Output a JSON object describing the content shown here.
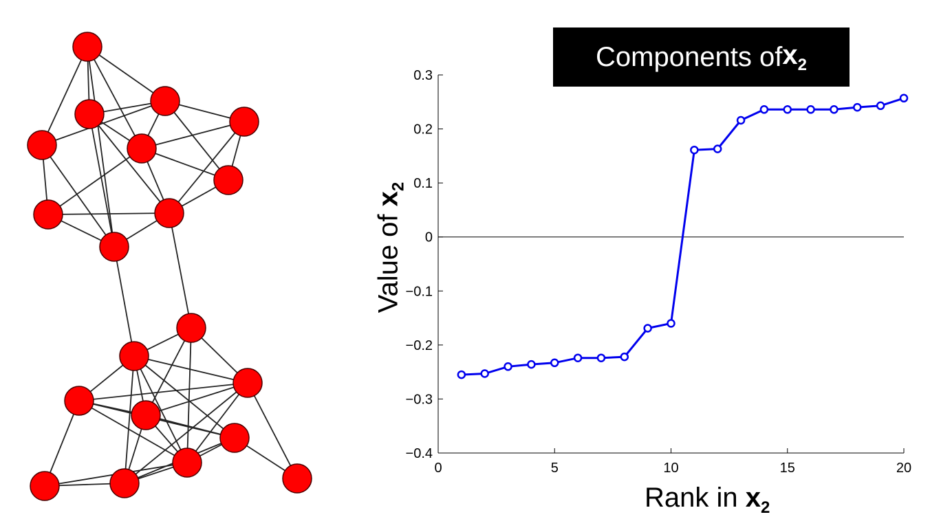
{
  "graph": {
    "node_color": "#ff0000",
    "node_stroke": "#4a0000",
    "edge_color": "#222222"
  },
  "chart_data": {
    "type": "line",
    "title_prefix": "Components of ",
    "title_var": "x",
    "title_sub": "2",
    "xlabel_prefix": "Rank in ",
    "xlabel_var": "x",
    "xlabel_sub": "2",
    "ylabel_prefix": "Value of ",
    "ylabel_var": "x",
    "ylabel_sub": "2",
    "xlim": [
      0,
      20
    ],
    "ylim": [
      -0.4,
      0.3
    ],
    "xticks": [
      0,
      5,
      10,
      15,
      20
    ],
    "xtick_labels": [
      "0",
      "5",
      "10",
      "15",
      "20"
    ],
    "yticks": [
      0.3,
      0.2,
      0.1,
      0,
      -0.1,
      -0.2,
      -0.3,
      -0.4
    ],
    "ytick_labels": [
      "0.3",
      "0.2",
      "0.1",
      "0",
      "−0.1",
      "−0.2",
      "−0.3",
      "−0.4"
    ],
    "series": [
      {
        "color": "#0000ee",
        "marker": "circle",
        "x": [
          1,
          2,
          3,
          4,
          5,
          6,
          7,
          8,
          9,
          10,
          11,
          12,
          13,
          14,
          15,
          16,
          17,
          18,
          19,
          20
        ],
        "y": [
          -0.255,
          -0.253,
          -0.24,
          -0.236,
          -0.233,
          -0.224,
          -0.224,
          -0.222,
          -0.169,
          -0.16,
          0.161,
          0.163,
          0.216,
          0.236,
          0.236,
          0.236,
          0.236,
          0.24,
          0.243,
          0.257
        ]
      }
    ],
    "zero_line": true,
    "grid": false
  }
}
